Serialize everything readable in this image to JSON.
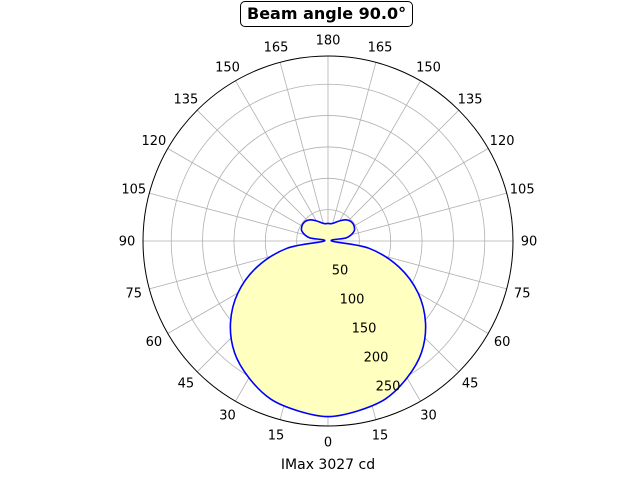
{
  "chart_data": {
    "type": "polar",
    "title": "Beam angle 90.0°",
    "xlabel": "IMax 3027 cd",
    "angle_tick_labels": [
      "0",
      "15",
      "30",
      "45",
      "60",
      "75",
      "90",
      "105",
      "120",
      "135",
      "150",
      "165",
      "180",
      "165",
      "150",
      "135",
      "120",
      "105",
      "90",
      "75",
      "60",
      "45",
      "30",
      "15"
    ],
    "radial_ticks": [
      50,
      100,
      150,
      200,
      250
    ],
    "rlim": [
      0,
      295
    ],
    "grid": true,
    "colors": {
      "curve": "#0000ff",
      "fill": "#ffffc0",
      "grid": "#b0b0b0"
    },
    "series": [
      {
        "angles_deg": [
          0,
          10,
          20,
          30,
          40,
          50,
          60,
          70,
          80,
          90,
          100,
          110,
          120,
          130,
          140,
          150,
          160,
          170,
          180
        ],
        "values": [
          280,
          275,
          268,
          252,
          232,
          203,
          166,
          120,
          66,
          6,
          30,
          44,
          48,
          48,
          44,
          37,
          31,
          28,
          28
        ]
      }
    ]
  }
}
